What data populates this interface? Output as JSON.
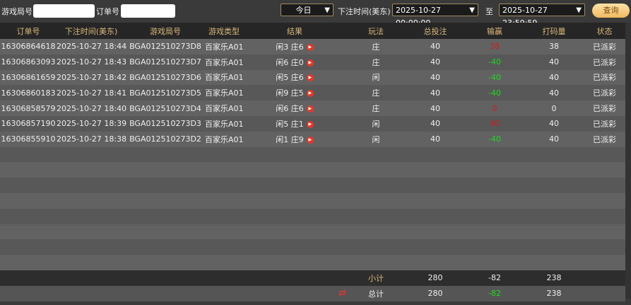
{
  "filters": {
    "game_round_label": "游戏局号",
    "game_round_value": "",
    "order_label": "订单号",
    "order_value": "",
    "period": "今日",
    "time_label": "下注时间(美东)",
    "start": "2025-10-27 00:00:00",
    "to_label": "至",
    "end": "2025-10-27 23:59:59",
    "query": "查询"
  },
  "columns": [
    "订单号",
    "下注时间(美东)",
    "游戏局号",
    "游戏类型",
    "结果",
    "玩法",
    "总投注",
    "输赢",
    "打码量",
    "状态"
  ],
  "rows": [
    {
      "order": "16306864618",
      "time": "2025-10-27 18:44",
      "round": "BGA012510273D8",
      "type": "百家乐A01",
      "result": "闲3 庄6",
      "bet": "庄",
      "total": "40",
      "win": "38",
      "win_color": "red",
      "code": "38",
      "status": "已派彩"
    },
    {
      "order": "16306863093",
      "time": "2025-10-27 18:43",
      "round": "BGA012510273D7",
      "type": "百家乐A01",
      "result": "闲6 庄0",
      "bet": "庄",
      "total": "40",
      "win": "-40",
      "win_color": "green",
      "code": "40",
      "status": "已派彩"
    },
    {
      "order": "16306861659",
      "time": "2025-10-27 18:42",
      "round": "BGA012510273D6",
      "type": "百家乐A01",
      "result": "闲5 庄6",
      "bet": "闲",
      "total": "40",
      "win": "-40",
      "win_color": "green",
      "code": "40",
      "status": "已派彩"
    },
    {
      "order": "16306860183",
      "time": "2025-10-27 18:41",
      "round": "BGA012510273D5",
      "type": "百家乐A01",
      "result": "闲9 庄5",
      "bet": "庄",
      "total": "40",
      "win": "-40",
      "win_color": "green",
      "code": "40",
      "status": "已派彩"
    },
    {
      "order": "16306858579",
      "time": "2025-10-27 18:40",
      "round": "BGA012510273D4",
      "type": "百家乐A01",
      "result": "闲6 庄6",
      "bet": "庄",
      "total": "40",
      "win": "0",
      "win_color": "red",
      "code": "0",
      "status": "已派彩"
    },
    {
      "order": "16306857190",
      "time": "2025-10-27 18:39",
      "round": "BGA012510273D3",
      "type": "百家乐A01",
      "result": "闲5 庄1",
      "bet": "闲",
      "total": "40",
      "win": "40",
      "win_color": "red",
      "code": "40",
      "status": "已派彩"
    },
    {
      "order": "16306855910",
      "time": "2025-10-27 18:38",
      "round": "BGA012510273D2",
      "type": "百家乐A01",
      "result": "闲1 庄9",
      "bet": "闲",
      "total": "40",
      "win": "-40",
      "win_color": "green",
      "code": "40",
      "status": "已派彩"
    }
  ],
  "subtotal": {
    "label": "小计",
    "total": "280",
    "win": "-82",
    "code": "238"
  },
  "grandtotal": {
    "label": "总计",
    "total": "280",
    "win": "-82",
    "code": "238"
  },
  "colors": {
    "win": "#c81e1e",
    "loss": "#1fd81f",
    "header_text": "#d9b77a"
  }
}
